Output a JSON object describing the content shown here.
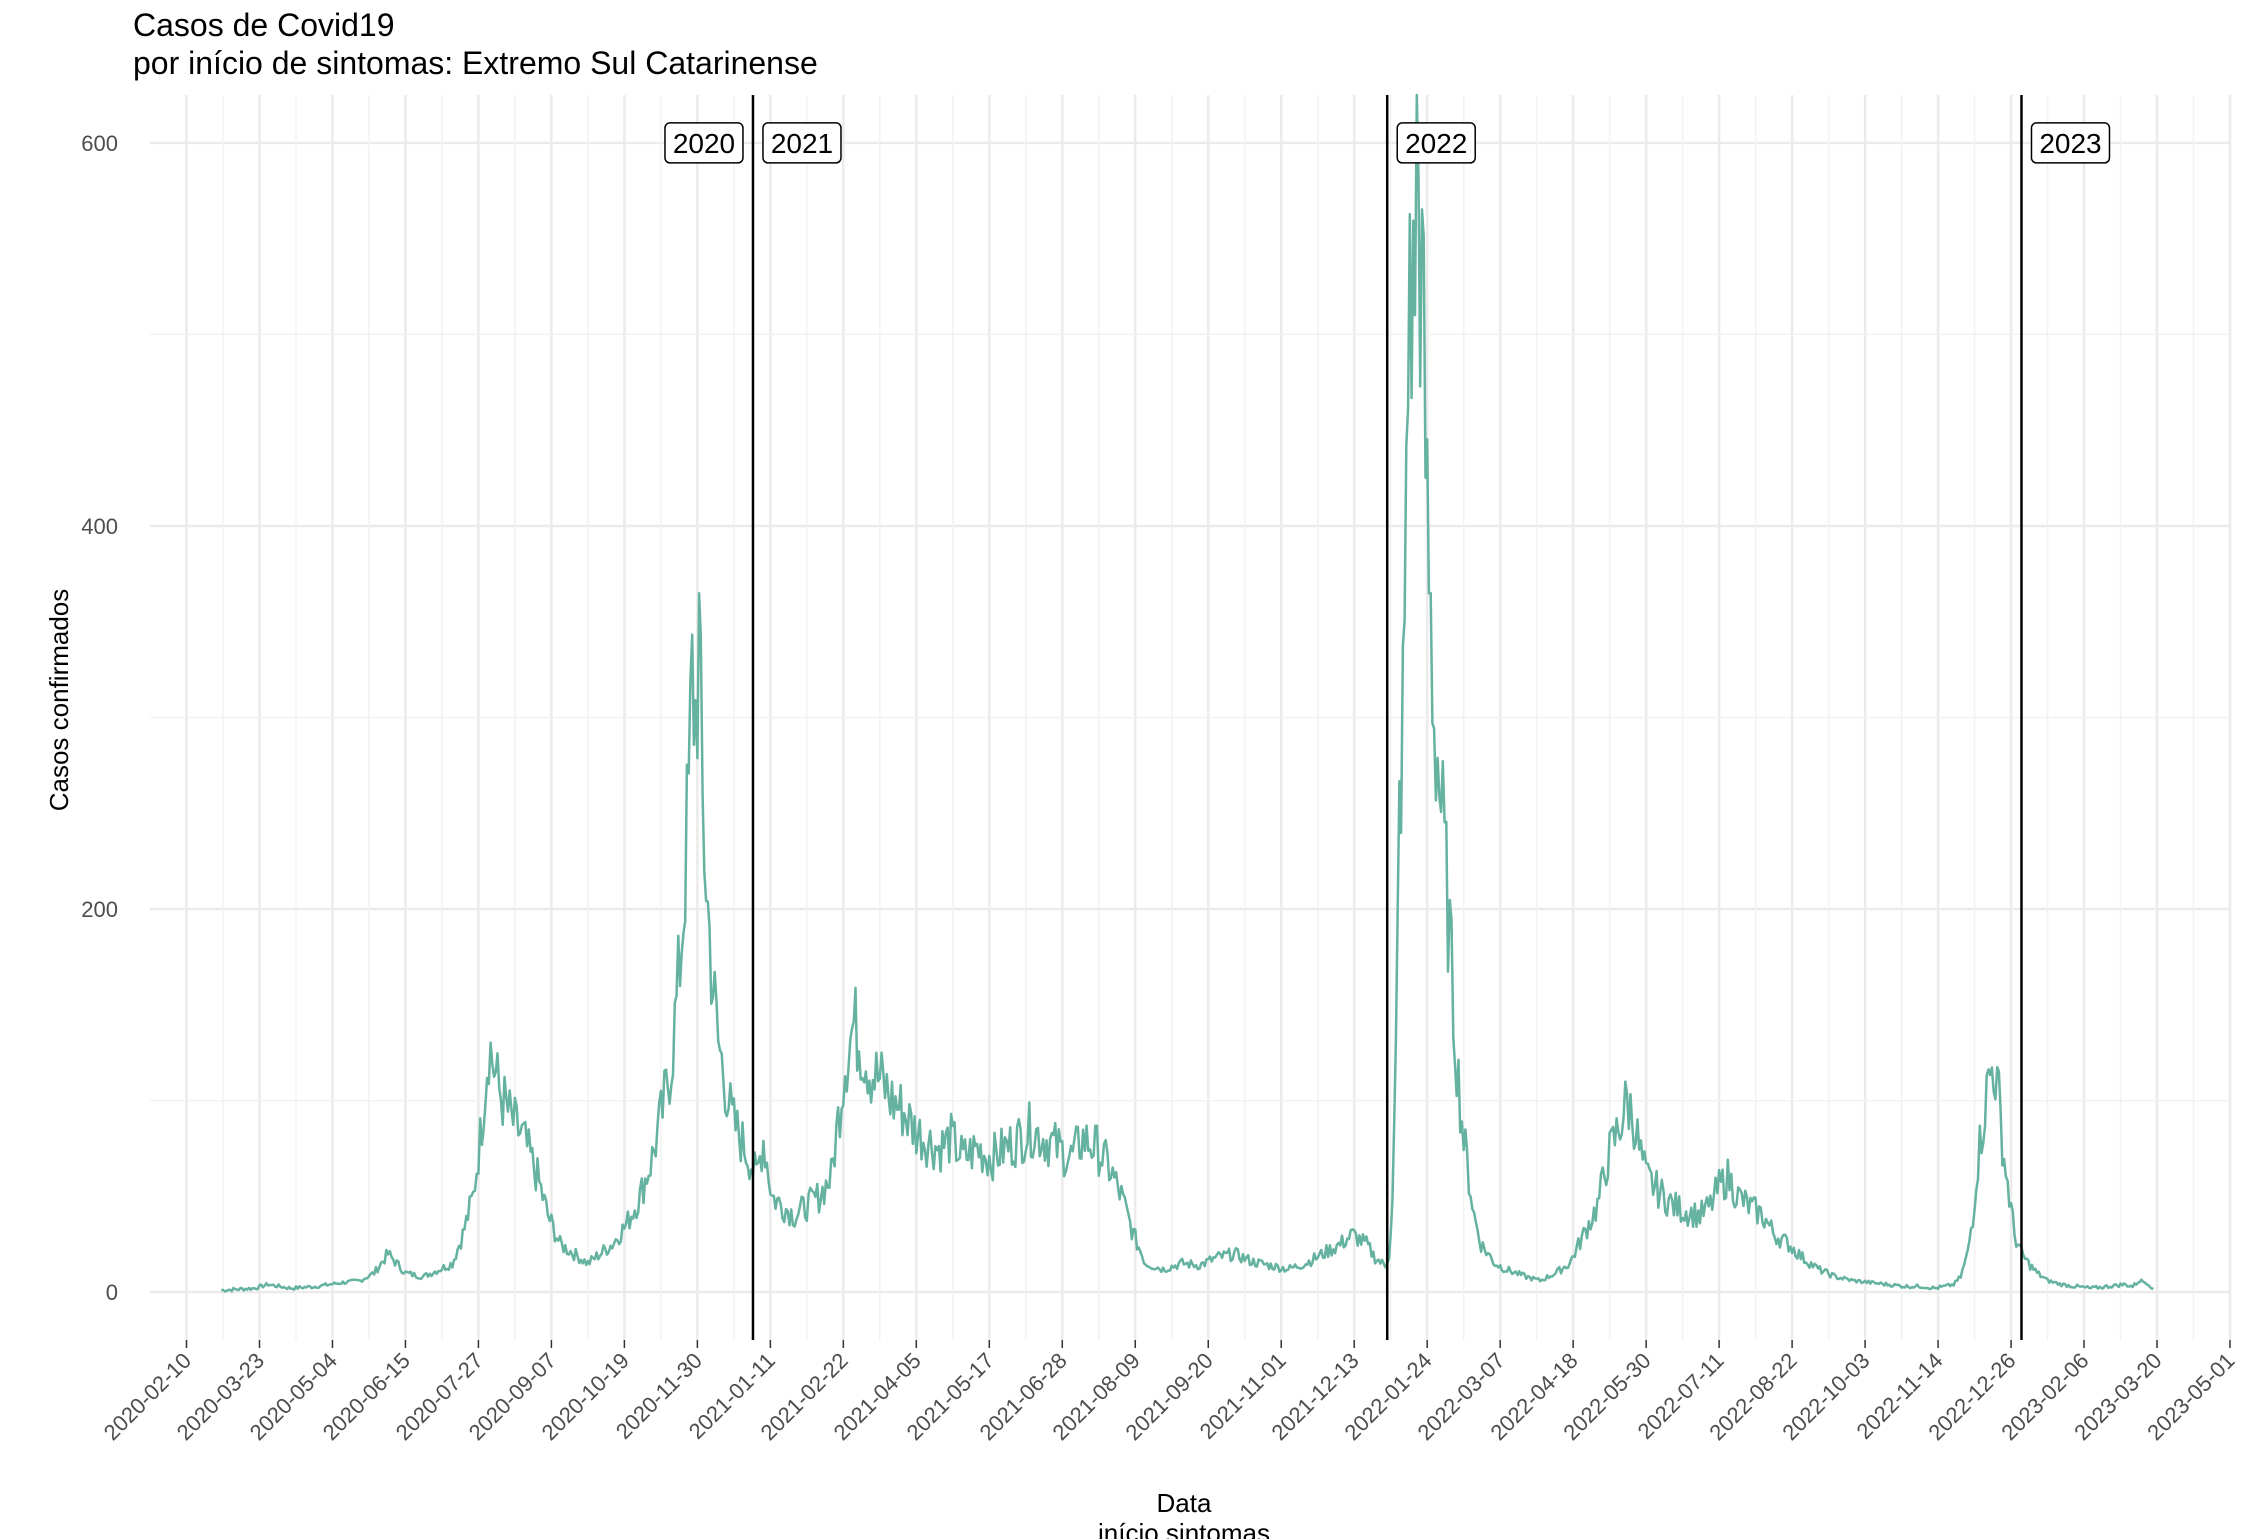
{
  "chart_data": {
    "type": "line",
    "title": "Casos de Covid19",
    "subtitle": "por início de sintomas: Extremo Sul Catarinense",
    "xlabel": "Data",
    "xlabel_sub": "início sintomas",
    "ylabel": "Casos confirmados",
    "xlim": [
      "2020-01-20",
      "2023-05-01"
    ],
    "ylim": [
      -25,
      625
    ],
    "y_ticks": [
      0,
      200,
      400,
      600
    ],
    "x_ticks": [
      "2020-02-10",
      "2020-03-23",
      "2020-05-04",
      "2020-06-15",
      "2020-07-27",
      "2020-09-07",
      "2020-10-19",
      "2020-11-30",
      "2021-01-11",
      "2021-02-22",
      "2021-04-05",
      "2021-05-17",
      "2021-06-28",
      "2021-08-09",
      "2021-09-20",
      "2021-11-01",
      "2021-12-13",
      "2022-01-24",
      "2022-03-07",
      "2022-04-18",
      "2022-05-30",
      "2022-07-11",
      "2022-08-22",
      "2022-10-03",
      "2022-11-14",
      "2022-12-26",
      "2023-02-06",
      "2023-03-20",
      "2023-05-01"
    ],
    "grid": true,
    "line_color": "#66B2A0",
    "year_markers": [
      {
        "date": "2021-01-01",
        "left_label": "2020",
        "right_label": "2021"
      },
      {
        "date": "2022-01-01",
        "left_label": "",
        "right_label": "2022"
      },
      {
        "date": "2023-01-01",
        "left_label": "",
        "right_label": "2023"
      }
    ],
    "series": [
      {
        "x": [
          "2020-03-01",
          "2020-03-20",
          "2020-03-28",
          "2020-04-10",
          "2020-04-25",
          "2020-05-10",
          "2020-05-20",
          "2020-05-28",
          "2020-06-05",
          "2020-06-15",
          "2020-06-25",
          "2020-07-05",
          "2020-07-12",
          "2020-07-18",
          "2020-07-24",
          "2020-07-28",
          "2020-08-02",
          "2020-08-08",
          "2020-08-15",
          "2020-08-22",
          "2020-08-30",
          "2020-09-05",
          "2020-09-12",
          "2020-09-20",
          "2020-09-28",
          "2020-10-05",
          "2020-10-12",
          "2020-10-20",
          "2020-10-28",
          "2020-11-04",
          "2020-11-10",
          "2020-11-15",
          "2020-11-19",
          "2020-11-22",
          "2020-11-25",
          "2020-11-27",
          "2020-11-29",
          "2020-12-01",
          "2020-12-03",
          "2020-12-06",
          "2020-12-09",
          "2020-12-12",
          "2020-12-16",
          "2020-12-20",
          "2020-12-25",
          "2020-12-30",
          "2021-01-03",
          "2021-01-07",
          "2021-01-12",
          "2021-01-18",
          "2021-01-25",
          "2021-02-01",
          "2021-02-08",
          "2021-02-15",
          "2021-02-19",
          "2021-02-23",
          "2021-02-28",
          "2021-03-04",
          "2021-03-10",
          "2021-03-16",
          "2021-03-22",
          "2021-03-28",
          "2021-04-04",
          "2021-04-10",
          "2021-04-18",
          "2021-04-25",
          "2021-05-02",
          "2021-05-10",
          "2021-05-18",
          "2021-05-26",
          "2021-06-03",
          "2021-06-10",
          "2021-06-18",
          "2021-06-26",
          "2021-07-03",
          "2021-07-10",
          "2021-07-18",
          "2021-07-25",
          "2021-08-01",
          "2021-08-08",
          "2021-08-15",
          "2021-08-25",
          "2021-09-05",
          "2021-09-15",
          "2021-09-25",
          "2021-10-05",
          "2021-10-15",
          "2021-10-25",
          "2021-11-05",
          "2021-11-15",
          "2021-11-25",
          "2021-12-05",
          "2021-12-12",
          "2021-12-20",
          "2021-12-25",
          "2021-12-29",
          "2021-12-31",
          "2022-01-02",
          "2022-01-04",
          "2022-01-06",
          "2022-01-08",
          "2022-01-10",
          "2022-01-12",
          "2022-01-14",
          "2022-01-16",
          "2022-01-18",
          "2022-01-20",
          "2022-01-22",
          "2022-01-24",
          "2022-01-26",
          "2022-01-28",
          "2022-01-30",
          "2022-02-02",
          "2022-02-05",
          "2022-02-08",
          "2022-02-11",
          "2022-02-14",
          "2022-02-17",
          "2022-02-20",
          "2022-02-24",
          "2022-02-28",
          "2022-03-04",
          "2022-03-10",
          "2022-03-16",
          "2022-03-22",
          "2022-03-30",
          "2022-04-08",
          "2022-04-16",
          "2022-04-24",
          "2022-05-02",
          "2022-05-08",
          "2022-05-14",
          "2022-05-19",
          "2022-05-23",
          "2022-05-26",
          "2022-05-30",
          "2022-06-04",
          "2022-06-09",
          "2022-06-15",
          "2022-06-22",
          "2022-06-30",
          "2022-07-06",
          "2022-07-11",
          "2022-07-16",
          "2022-07-22",
          "2022-07-28",
          "2022-08-05",
          "2022-08-12",
          "2022-08-20",
          "2022-08-28",
          "2022-09-06",
          "2022-09-16",
          "2022-09-26",
          "2022-10-06",
          "2022-10-16",
          "2022-10-26",
          "2022-11-05",
          "2022-11-12",
          "2022-11-18",
          "2022-11-23",
          "2022-11-27",
          "2022-12-01",
          "2022-12-04",
          "2022-12-07",
          "2022-12-10",
          "2022-12-13",
          "2022-12-16",
          "2022-12-19",
          "2022-12-22",
          "2022-12-25",
          "2022-12-28",
          "2023-01-01",
          "2023-01-05",
          "2023-01-10",
          "2023-01-16",
          "2023-01-24",
          "2023-02-01",
          "2023-02-10",
          "2023-02-20",
          "2023-03-01",
          "2023-03-06",
          "2023-03-10",
          "2023-03-14",
          "2023-03-18"
        ],
        "y": [
          1,
          2,
          4,
          2,
          3,
          5,
          6,
          10,
          20,
          10,
          8,
          12,
          15,
          30,
          50,
          80,
          130,
          105,
          90,
          80,
          60,
          40,
          25,
          20,
          15,
          20,
          25,
          35,
          50,
          70,
          95,
          120,
          160,
          200,
          260,
          320,
          300,
          340,
          250,
          200,
          160,
          130,
          110,
          90,
          80,
          70,
          60,
          80,
          50,
          45,
          40,
          45,
          50,
          60,
          90,
          120,
          140,
          130,
          115,
          110,
          100,
          95,
          85,
          80,
          75,
          80,
          70,
          75,
          70,
          75,
          80,
          85,
          80,
          75,
          70,
          80,
          75,
          65,
          50,
          30,
          15,
          12,
          15,
          14,
          18,
          20,
          16,
          14,
          12,
          15,
          20,
          25,
          30,
          25,
          18,
          15,
          14,
          20,
          45,
          120,
          250,
          300,
          400,
          550,
          500,
          600,
          550,
          480,
          400,
          350,
          300,
          280,
          240,
          200,
          150,
          110,
          80,
          60,
          40,
          25,
          20,
          15,
          12,
          10,
          8,
          6,
          10,
          15,
          30,
          45,
          70,
          85,
          100,
          90,
          75,
          60,
          55,
          50,
          45,
          42,
          40,
          45,
          55,
          60,
          50,
          45,
          40,
          30,
          25,
          18,
          12,
          8,
          6,
          5,
          4,
          3,
          3,
          2,
          3,
          4,
          8,
          20,
          40,
          70,
          90,
          110,
          120,
          100,
          70,
          50,
          30,
          20,
          15,
          10,
          6,
          4,
          3,
          2,
          3,
          4,
          3,
          6,
          5,
          2
        ]
      }
    ]
  }
}
